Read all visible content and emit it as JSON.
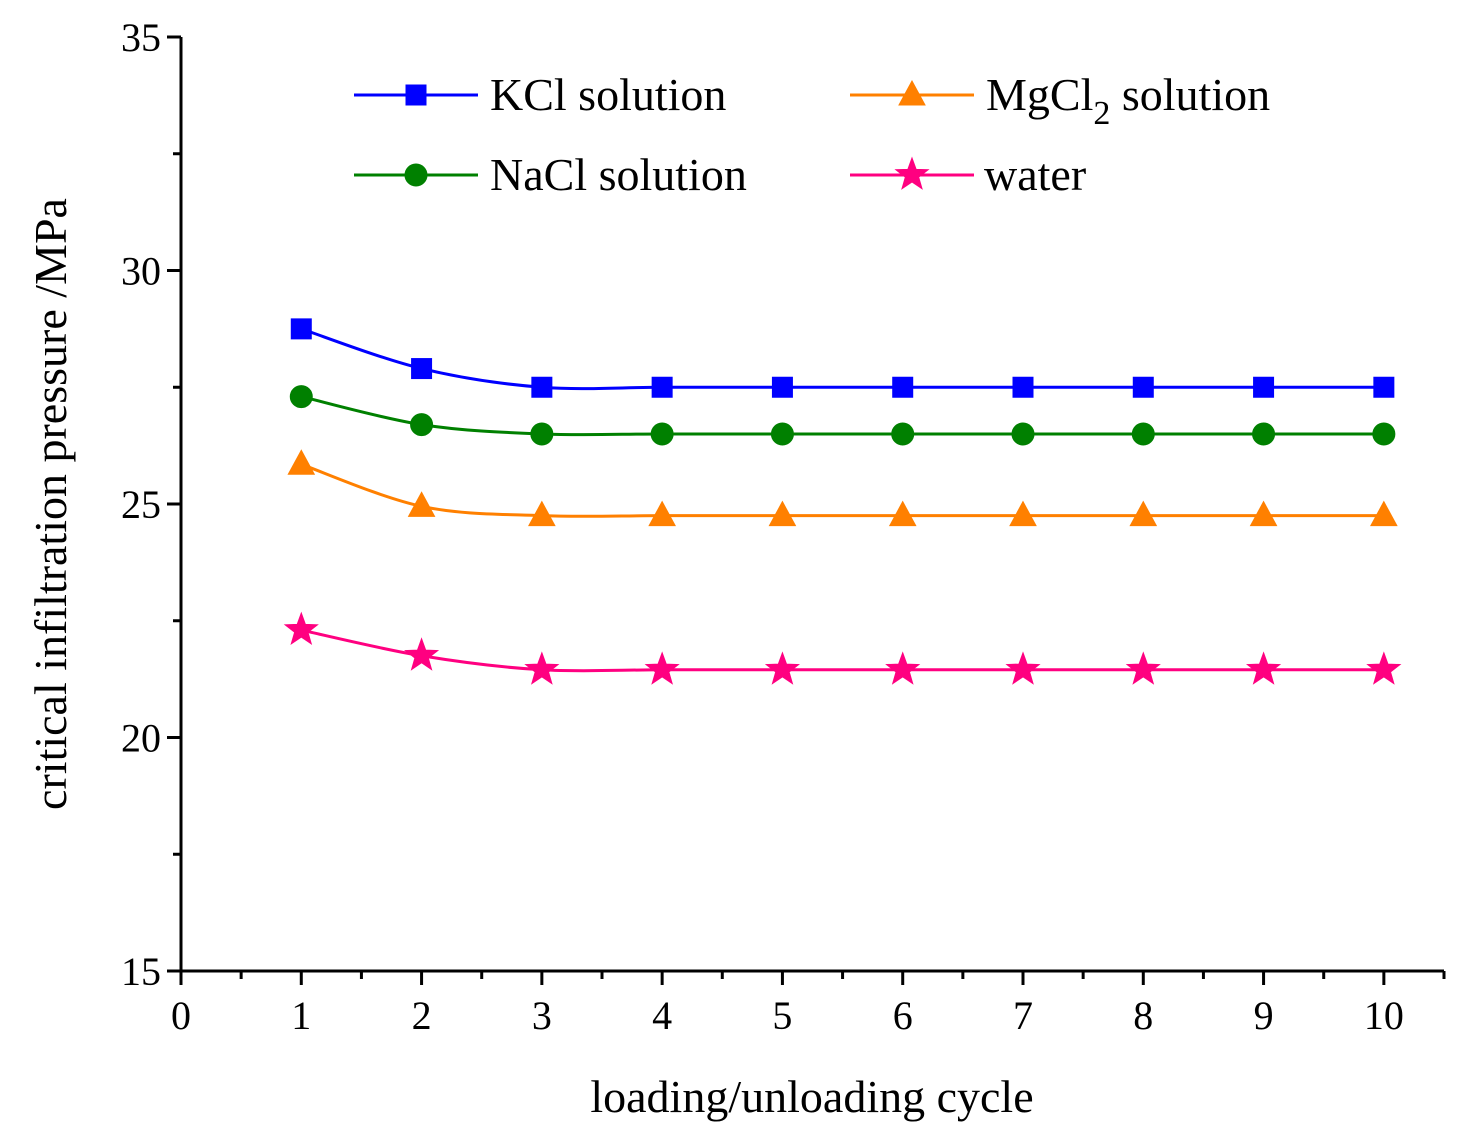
{
  "chart_data": {
    "type": "line",
    "title": "",
    "xlabel": "loading/unloading cycle",
    "ylabel": "critical infiltration pressure /MPa",
    "xlim": [
      0,
      10.5
    ],
    "ylim": [
      15,
      35
    ],
    "xticks": [
      0,
      1,
      2,
      3,
      4,
      5,
      6,
      7,
      8,
      9,
      10
    ],
    "yticks": [
      15,
      20,
      25,
      30,
      35
    ],
    "legend_position": "top",
    "x": [
      1,
      2,
      3,
      4,
      5,
      6,
      7,
      8,
      9,
      10
    ],
    "series": [
      {
        "name": "KCl solution",
        "label_main": "KCl solution",
        "marker": "square",
        "color": "#0000FF",
        "values": [
          28.75,
          27.9,
          27.5,
          27.5,
          27.5,
          27.5,
          27.5,
          27.5,
          27.5,
          27.5
        ]
      },
      {
        "name": "MgCl2 solution",
        "label_main": "MgCl",
        "label_sub": "2",
        "label_tail": " solution",
        "marker": "triangle",
        "color": "#FF8000",
        "values": [
          25.85,
          24.95,
          24.75,
          24.75,
          24.75,
          24.75,
          24.75,
          24.75,
          24.75,
          24.75
        ]
      },
      {
        "name": "NaCl solution",
        "label_main": "NaCl solution",
        "marker": "circle",
        "color": "#008000",
        "values": [
          27.3,
          26.7,
          26.5,
          26.5,
          26.5,
          26.5,
          26.5,
          26.5,
          26.5,
          26.5
        ]
      },
      {
        "name": "water",
        "label_main": "water",
        "marker": "star",
        "color": "#FF0080",
        "values": [
          22.3,
          21.75,
          21.45,
          21.45,
          21.45,
          21.45,
          21.45,
          21.45,
          21.45,
          21.45
        ]
      }
    ]
  }
}
